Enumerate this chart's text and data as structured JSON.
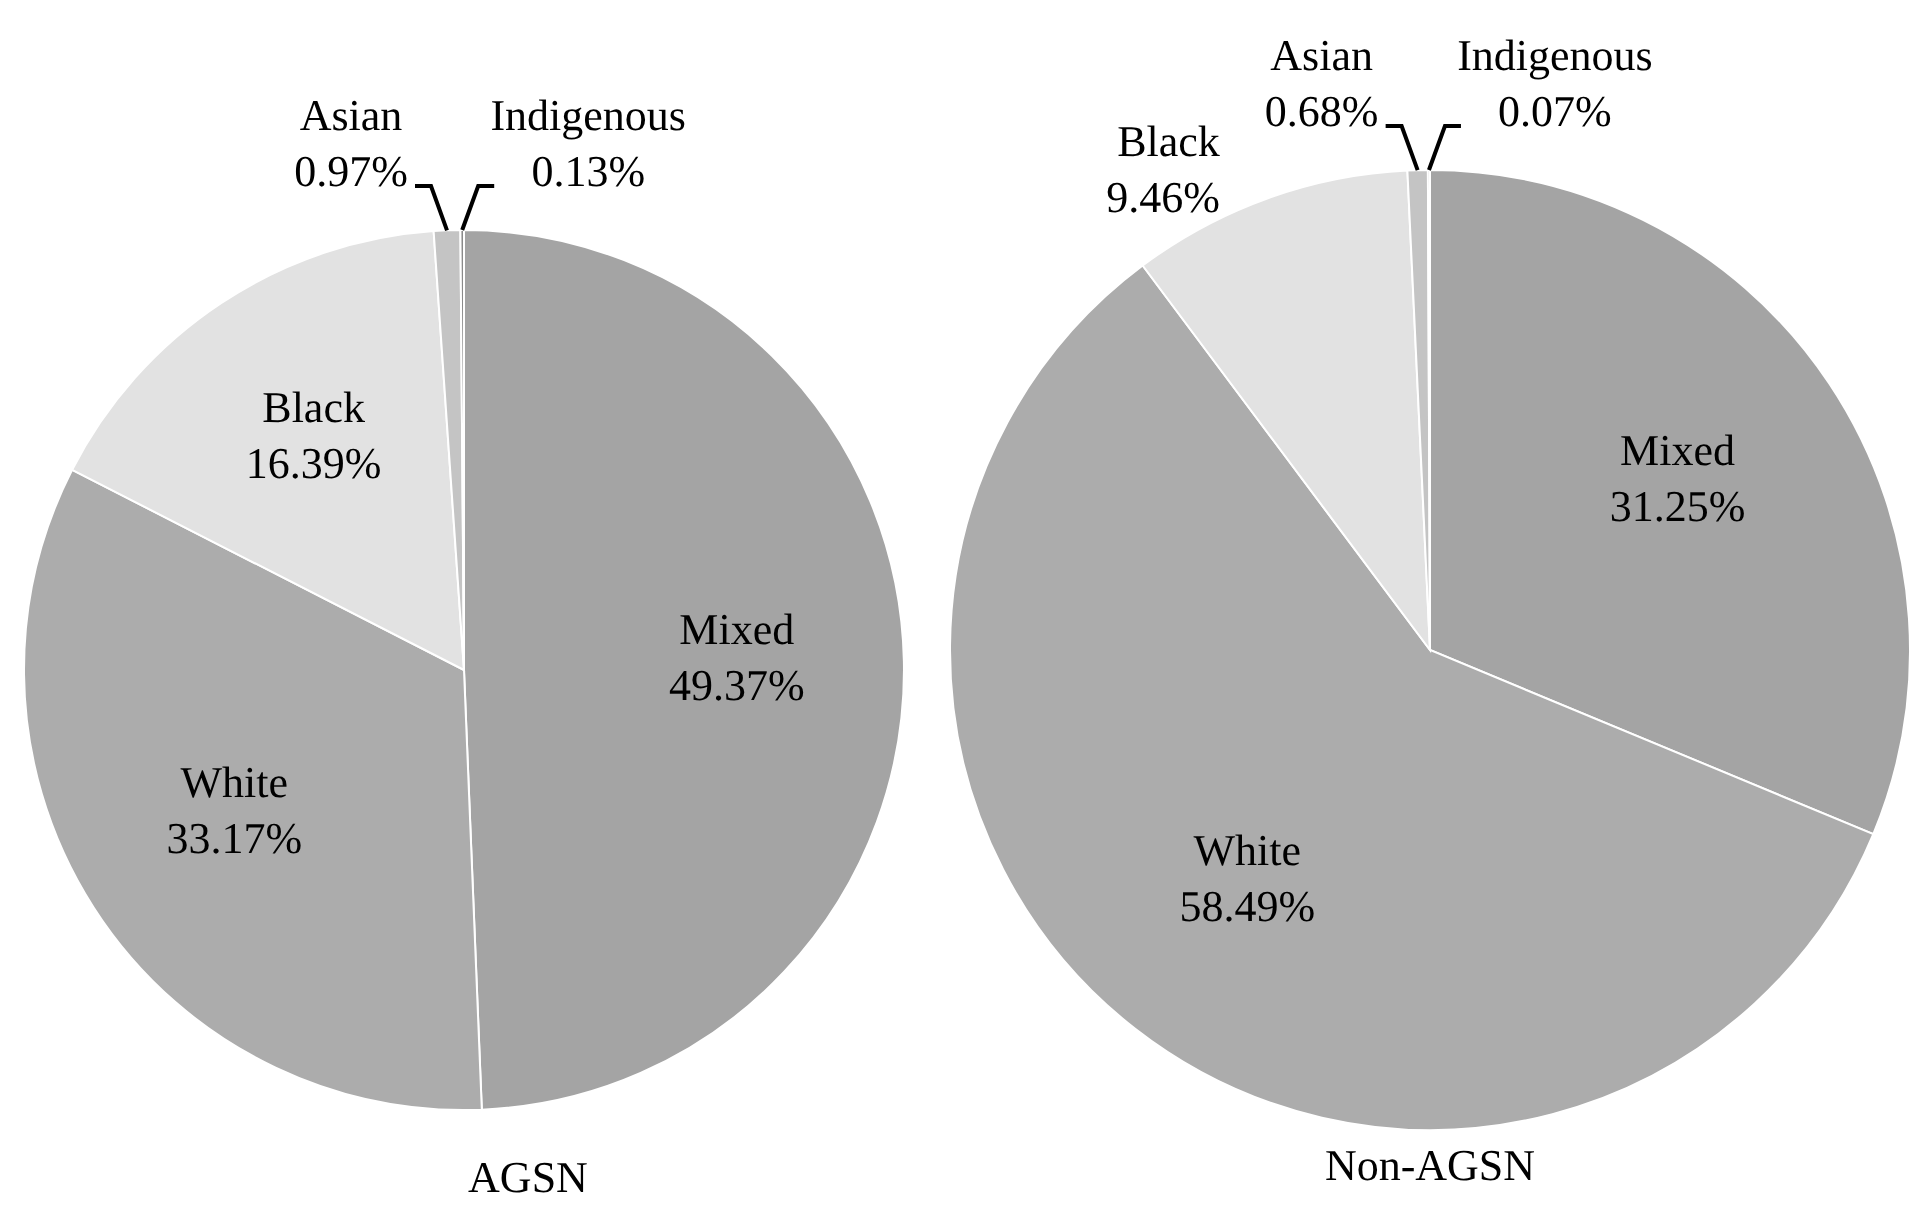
{
  "chart_data": [
    {
      "type": "pie",
      "title": "AGSN",
      "categories": [
        "Mixed",
        "White",
        "Black",
        "Asian",
        "Indigenous"
      ],
      "values": [
        49.37,
        33.17,
        16.39,
        0.97,
        0.13
      ],
      "value_labels": [
        "49.37%",
        "33.17%",
        "16.39%",
        "0.97%",
        "0.13%"
      ],
      "colors": [
        "#a4a4a4",
        "#acacac",
        "#e2e2e2",
        "#c4c4c4",
        "#8a8a8a"
      ]
    },
    {
      "type": "pie",
      "title": "Non-AGSN",
      "categories": [
        "Mixed",
        "White",
        "Black",
        "Asian",
        "Indigenous"
      ],
      "values": [
        31.25,
        58.49,
        9.46,
        0.68,
        0.07
      ],
      "value_labels": [
        "31.25%",
        "58.49%",
        "9.46%",
        "0.68%",
        "0.07%"
      ],
      "colors": [
        "#a4a4a4",
        "#acacac",
        "#e2e2e2",
        "#c4c4c4",
        "#8a8a8a"
      ]
    }
  ]
}
